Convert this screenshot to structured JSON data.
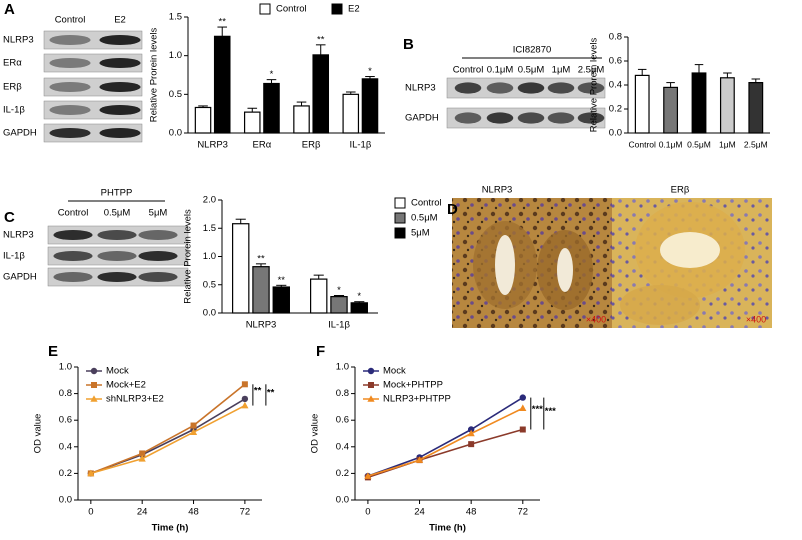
{
  "panel_labels": [
    "A",
    "B",
    "C",
    "D",
    "E",
    "F"
  ],
  "blots": [
    {
      "lanes": [
        "Control",
        "E2"
      ],
      "rows": [
        "NLRP3",
        "ERα",
        "ERβ",
        "IL-1β",
        "GAPDH"
      ]
    },
    {
      "treatment": "ICI82870",
      "lanes": [
        "Control",
        "0.1μM",
        "0.5μM",
        "1μM",
        "2.5μM"
      ],
      "rows": [
        "NLRP3",
        "GAPDH"
      ]
    },
    {
      "treatment": "PHTPP",
      "lanes": [
        "Control",
        "0.5μM",
        "5μM"
      ],
      "rows": [
        "NLRP3",
        "IL-1β",
        "GAPDH"
      ]
    }
  ],
  "histology": {
    "stains": [
      "NLRP3",
      "ERβ"
    ],
    "magnification": [
      "×400",
      "×400"
    ]
  },
  "chart_data": [
    {
      "type": "bar",
      "ylabel": "Relative Prorein levels",
      "categories": [
        "NLRP3",
        "ERα",
        "ERβ",
        "IL-1β"
      ],
      "series": [
        {
          "name": "Control",
          "color": "#ffffff",
          "values": [
            0.33,
            0.27,
            0.35,
            0.5
          ],
          "errors": [
            0.02,
            0.05,
            0.05,
            0.03
          ]
        },
        {
          "name": "E2",
          "color": "#000000",
          "values": [
            1.25,
            0.64,
            1.01,
            0.7
          ],
          "errors": [
            0.12,
            0.05,
            0.13,
            0.03
          ],
          "significance": [
            "**",
            "*",
            "**",
            "*"
          ]
        }
      ],
      "ylim": [
        0,
        1.5
      ],
      "yticks": [
        {
          "value": 0,
          "label": "0.0"
        },
        0.5,
        {
          "value": 1,
          "label": "1.0"
        },
        1.5
      ],
      "legend": "top"
    },
    {
      "type": "bar",
      "ylabel": "Relative Prorein levels",
      "categories": [
        "Control",
        "0.1μM",
        "0.5μM",
        "1μM",
        "2.5μM"
      ],
      "series": [
        {
          "colors": [
            "#ffffff",
            "#777777",
            "#000000",
            "#cccccc",
            "#333333"
          ],
          "values": [
            0.48,
            0.38,
            0.5,
            0.46,
            0.42
          ],
          "errors": [
            0.05,
            0.04,
            0.07,
            0.04,
            0.03
          ]
        }
      ],
      "ylim": [
        0,
        0.8
      ],
      "yticks": [
        {
          "value": 0,
          "label": "0.0"
        },
        0.2,
        0.4,
        0.6,
        0.8
      ]
    },
    {
      "type": "bar",
      "ylabel": "Relative Prorein levels",
      "categories": [
        "NLRP3",
        "IL-1β"
      ],
      "series": [
        {
          "name": "Control",
          "color": "#ffffff",
          "values": [
            1.58,
            0.6
          ],
          "errors": [
            0.08,
            0.07
          ]
        },
        {
          "name": "0.5μM",
          "color": "#777777",
          "values": [
            0.82,
            0.29
          ],
          "errors": [
            0.05,
            0.02
          ],
          "significance": [
            "**",
            "*"
          ]
        },
        {
          "name": "5μM",
          "color": "#000000",
          "values": [
            0.46,
            0.18
          ],
          "errors": [
            0.03,
            0.02
          ],
          "significance": [
            "**",
            "*"
          ]
        }
      ],
      "ylim": [
        0,
        2
      ],
      "yticks": [
        {
          "value": 0,
          "label": "0.0"
        },
        0.5,
        {
          "value": 1,
          "label": "1.0"
        },
        1.5,
        {
          "value": 2,
          "label": "2.0"
        }
      ],
      "legend": "right"
    },
    {
      "type": "line",
      "xlabel": "Time (h)",
      "ylabel": "OD value",
      "x": [
        0,
        24,
        48,
        72
      ],
      "xlim": [
        -6,
        80
      ],
      "xticks": [
        0,
        24,
        48,
        72
      ],
      "series": [
        {
          "name": "Mock",
          "color": "#4a3f5c",
          "marker": "circle",
          "values": [
            0.2,
            0.34,
            0.53,
            0.76
          ]
        },
        {
          "name": "Mock+E2",
          "color": "#c9742a",
          "marker": "square",
          "values": [
            0.2,
            0.35,
            0.56,
            0.87
          ]
        },
        {
          "name": "shNLRP3+E2",
          "color": "#f0a030",
          "marker": "triangle",
          "values": [
            0.2,
            0.31,
            0.51,
            0.71
          ]
        }
      ],
      "ylim": [
        0,
        1
      ],
      "yticks": [
        {
          "value": 0,
          "label": "0.0"
        },
        0.2,
        0.4,
        0.6,
        0.8,
        {
          "value": 1,
          "label": "1.0"
        }
      ],
      "annotations": [
        "**",
        "**"
      ],
      "legend": "upper left"
    },
    {
      "type": "line",
      "xlabel": "Time (h)",
      "ylabel": "OD value",
      "x": [
        0,
        24,
        48,
        72
      ],
      "xlim": [
        -6,
        80
      ],
      "xticks": [
        0,
        24,
        48,
        72
      ],
      "series": [
        {
          "name": "Mock",
          "color": "#2b2b7a",
          "marker": "circle",
          "values": [
            0.18,
            0.32,
            0.53,
            0.77
          ]
        },
        {
          "name": "Mock+PHTPP",
          "color": "#8b3a2a",
          "marker": "square",
          "values": [
            0.17,
            0.3,
            0.42,
            0.53
          ]
        },
        {
          "name": "NLRP3+PHTPP",
          "color": "#f08a20",
          "marker": "triangle",
          "values": [
            0.18,
            0.3,
            0.5,
            0.69
          ]
        }
      ],
      "ylim": [
        0,
        1
      ],
      "yticks": [
        {
          "value": 0,
          "label": "0.0"
        },
        0.2,
        0.4,
        0.6,
        0.8,
        {
          "value": 1,
          "label": "1.0"
        }
      ],
      "annotations": [
        "***",
        "***"
      ],
      "legend": "upper left"
    }
  ]
}
